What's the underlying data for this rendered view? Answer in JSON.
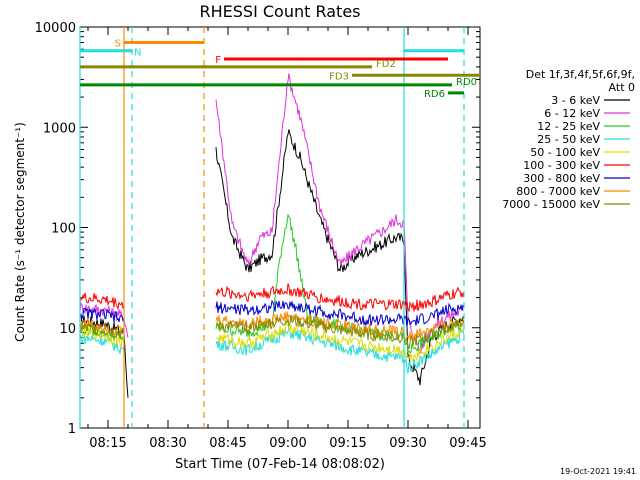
{
  "chart_data": {
    "type": "line",
    "title": "RHESSI Count Rates",
    "xlabel": "Start Time (07-Feb-14 08:08:02)",
    "ylabel": "Count Rate (s⁻¹ detector segment⁻¹)",
    "y_scale": "log",
    "ylim": [
      1,
      10000
    ],
    "xlim": [
      "08:08",
      "09:48"
    ],
    "x_ticks": [
      "08:15",
      "08:30",
      "08:45",
      "09:00",
      "09:15",
      "09:30",
      "09:45"
    ],
    "y_ticks": [
      "1",
      "10",
      "100",
      "1000",
      "10000"
    ],
    "legend": {
      "header": "Det 1f,3f,4f,5f,6f,9f,",
      "att": "Att 0",
      "placement": "right",
      "entries": [
        {
          "label": "3 - 6 keV",
          "color": "#000000"
        },
        {
          "label": "6 - 12 keV",
          "color": "#e030e0"
        },
        {
          "label": "12 - 25 keV",
          "color": "#22cc22"
        },
        {
          "label": "25 - 50 keV",
          "color": "#22dddd"
        },
        {
          "label": "50 - 100 keV",
          "color": "#dddd00"
        },
        {
          "label": "100 - 300 keV",
          "color": "#ff0000"
        },
        {
          "label": "300 - 800 keV",
          "color": "#0000cc"
        },
        {
          "label": "800 - 7000 keV",
          "color": "#ff8800"
        },
        {
          "label": "7000 - 15000 keV",
          "color": "#888800"
        }
      ]
    },
    "series": [
      {
        "name": "3 - 6 keV",
        "color": "#000000",
        "x": [
          "08:08",
          "08:14",
          "08:19",
          "08:20",
          "08:39",
          "08:42",
          "08:46",
          "08:50",
          "08:53",
          "08:56",
          "09:00",
          "09:03",
          "09:08",
          "09:13",
          "09:17",
          "09:24",
          "09:27",
          "09:29",
          "09:30",
          "09:33",
          "09:36",
          "09:40",
          "09:44"
        ],
        "y": [
          12,
          11,
          9,
          2,
          null,
          600,
          80,
          38,
          48,
          55,
          900,
          500,
          120,
          38,
          52,
          70,
          80,
          75,
          5,
          3,
          8,
          11,
          13
        ]
      },
      {
        "name": "6 - 12 keV",
        "color": "#e030e0",
        "x": [
          "08:08",
          "08:14",
          "08:19",
          "08:20",
          "08:39",
          "08:42",
          "08:46",
          "08:50",
          "08:53",
          "08:56",
          "09:00",
          "09:03",
          "09:08",
          "09:13",
          "09:17",
          "09:24",
          "09:27",
          "09:29",
          "09:30",
          "09:33",
          "09:36",
          "09:40",
          "09:44"
        ],
        "y": [
          16,
          15,
          13,
          8,
          null,
          1900,
          110,
          42,
          80,
          90,
          3300,
          1300,
          160,
          42,
          60,
          95,
          120,
          110,
          12,
          6,
          10,
          13,
          15
        ]
      },
      {
        "name": "12 - 25 keV",
        "color": "#22cc22",
        "x": [
          "08:08",
          "08:14",
          "08:19",
          "08:39",
          "08:42",
          "08:50",
          "08:56",
          "08:58",
          "09:00",
          "09:02",
          "09:05",
          "09:10",
          "09:20",
          "09:29",
          "09:30",
          "09:36",
          "09:40",
          "09:44"
        ],
        "y": [
          10,
          9,
          8,
          null,
          10,
          9,
          11,
          50,
          140,
          60,
          12,
          11,
          9,
          8,
          6,
          8,
          10,
          12
        ]
      },
      {
        "name": "25 - 50 keV",
        "color": "#22dddd",
        "x": [
          "08:08",
          "08:14",
          "08:19",
          "08:39",
          "08:42",
          "08:50",
          "09:00",
          "09:10",
          "09:20",
          "09:29",
          "09:30",
          "09:36",
          "09:40",
          "09:44"
        ],
        "y": [
          8,
          7.5,
          6,
          null,
          7,
          6,
          9,
          7,
          5.5,
          5,
          4,
          5.5,
          7,
          8.5
        ]
      },
      {
        "name": "50 - 100 keV",
        "color": "#dddd00",
        "x": [
          "08:08",
          "08:14",
          "08:19",
          "08:39",
          "08:42",
          "08:50",
          "09:00",
          "09:10",
          "09:20",
          "09:29",
          "09:30",
          "09:36",
          "09:40",
          "09:44"
        ],
        "y": [
          9,
          8.5,
          7,
          null,
          8,
          7,
          10,
          8,
          6.5,
          6,
          5,
          6.5,
          8,
          9.5
        ]
      },
      {
        "name": "100 - 300 keV",
        "color": "#ff0000",
        "x": [
          "08:08",
          "08:14",
          "08:19",
          "08:39",
          "08:42",
          "08:50",
          "09:00",
          "09:10",
          "09:20",
          "09:29",
          "09:30",
          "09:36",
          "09:40",
          "09:44"
        ],
        "y": [
          20,
          19,
          17,
          null,
          23,
          21,
          24,
          19,
          17,
          17,
          16,
          18,
          21,
          23
        ]
      },
      {
        "name": "300 - 800 keV",
        "color": "#0000cc",
        "x": [
          "08:08",
          "08:14",
          "08:19",
          "08:39",
          "08:42",
          "08:50",
          "09:00",
          "09:10",
          "09:20",
          "09:29",
          "09:30",
          "09:36",
          "09:40",
          "09:44"
        ],
        "y": [
          14,
          13.5,
          12,
          null,
          16,
          15,
          17,
          14,
          12,
          12,
          11,
          13,
          15,
          16
        ]
      },
      {
        "name": "800 - 7000 keV",
        "color": "#ff8800",
        "x": [
          "08:08",
          "08:14",
          "08:19",
          "08:39",
          "08:42",
          "08:50",
          "09:00",
          "09:10",
          "09:20",
          "09:29",
          "09:30",
          "09:36",
          "09:40",
          "09:44"
        ],
        "y": [
          11,
          10.5,
          9,
          null,
          12,
          11,
          13,
          11,
          9.5,
          9,
          8,
          9.5,
          11,
          12
        ]
      },
      {
        "name": "7000 - 15000 keV",
        "color": "#888800",
        "x": [
          "08:08",
          "08:14",
          "08:19",
          "08:39",
          "08:42",
          "08:50",
          "09:00",
          "09:10",
          "09:20",
          "09:29",
          "09:30",
          "09:36",
          "09:40",
          "09:44"
        ],
        "y": [
          10,
          9.5,
          8.5,
          null,
          10.5,
          10,
          12,
          10,
          8.5,
          8,
          7,
          8.5,
          10,
          11
        ]
      }
    ],
    "flags": [
      {
        "label": "S",
        "color": "#ff8800",
        "x_start": "08:19",
        "x_end": "08:39",
        "y": 7000
      },
      {
        "label": "N",
        "color": "#22dddd",
        "x_start": "08:08",
        "x_end": "08:21",
        "y": 5800
      },
      {
        "label": "F",
        "color": "#ff0000",
        "x_start": "08:44",
        "x_end": "09:40",
        "y": 4800
      },
      {
        "label": "FD2",
        "color": "#888800",
        "x_start": "08:08",
        "x_end": "09:21",
        "y": 4000
      },
      {
        "label": "FD3",
        "color": "#888800",
        "x_start": "09:16",
        "x_end": "09:48",
        "y": 3300
      },
      {
        "label": "RD0",
        "color": "#008800",
        "x_start": "08:08",
        "x_end": "09:41",
        "y": 2650
      },
      {
        "label": "RD6",
        "color": "#008800",
        "x_start": "09:40",
        "x_end": "09:44",
        "y": 2200
      },
      {
        "label": "",
        "color": "#22dddd",
        "x_start": "09:29",
        "x_end": "09:44",
        "y": 5800
      }
    ],
    "vertical_lines": [
      {
        "x": "08:08",
        "color": "#22dddd",
        "style": "solid"
      },
      {
        "x": "08:19",
        "color": "#ff8800",
        "style": "solid"
      },
      {
        "x": "08:21",
        "color": "#22dddd",
        "style": "dashed"
      },
      {
        "x": "08:39",
        "color": "#ff8800",
        "style": "dashed"
      },
      {
        "x": "09:29",
        "color": "#22dddd",
        "style": "solid"
      },
      {
        "x": "09:44",
        "color": "#22dddd",
        "style": "dashed"
      }
    ],
    "footer_date": "19-Oct-2021 19:41"
  }
}
